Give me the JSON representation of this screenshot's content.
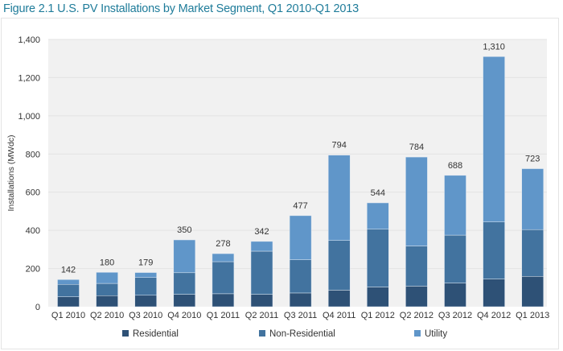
{
  "chart_data": {
    "type": "bar",
    "stacked": true,
    "title": "Figure 2.1  U.S. PV Installations by Market Segment, Q1 2010-Q1 2013",
    "xlabel": "",
    "ylabel": "Installations (MWdc)",
    "ylim": [
      0,
      1400
    ],
    "yticks": [
      0,
      200,
      400,
      600,
      800,
      1000,
      1200,
      1400
    ],
    "ytick_labels": [
      "0",
      "200",
      "400",
      "600",
      "800",
      "1,000",
      "1,200",
      "1,400"
    ],
    "grid": true,
    "legend_position": "bottom",
    "categories": [
      "Q1 2010",
      "Q2 2010",
      "Q3 2010",
      "Q4 2010",
      "Q1 2011",
      "Q2 2011",
      "Q3 2011",
      "Q4 2011",
      "Q1 2012",
      "Q2 2012",
      "Q3 2012",
      "Q4 2012",
      "Q1 2013"
    ],
    "series": [
      {
        "name": "Residential",
        "color": "#2e5176",
        "values": [
          52,
          58,
          60,
          65,
          68,
          65,
          72,
          87,
          103,
          108,
          124,
          145,
          159
        ]
      },
      {
        "name": "Non-Residential",
        "color": "#42739f",
        "values": [
          65,
          64,
          93,
          113,
          168,
          226,
          174,
          260,
          303,
          210,
          251,
          299,
          245
        ]
      },
      {
        "name": "Utility",
        "color": "#6096c9",
        "values": [
          25,
          58,
          26,
          172,
          42,
          51,
          231,
          447,
          138,
          466,
          313,
          866,
          319
        ]
      }
    ],
    "totals": [
      142,
      180,
      179,
      350,
      278,
      342,
      477,
      794,
      544,
      784,
      688,
      1310,
      723
    ],
    "total_labels": [
      "142",
      "180",
      "179",
      "350",
      "278",
      "342",
      "477",
      "794",
      "544",
      "784",
      "688",
      "1,310",
      "723"
    ]
  }
}
